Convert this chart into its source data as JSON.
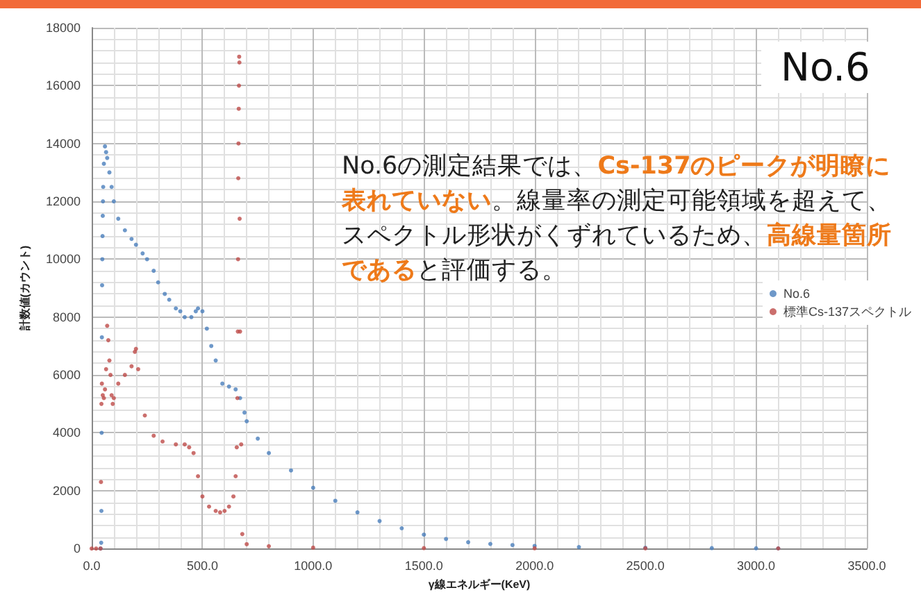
{
  "chart_data": {
    "type": "scatter",
    "xlabel": "γ線エネルギー(KeV)",
    "ylabel": "計数値(カウント)",
    "xlim": [
      0,
      3500
    ],
    "xticks": [
      {
        "value": 0,
        "label": "0.0"
      },
      {
        "value": 500,
        "label": "500.0"
      },
      {
        "value": 1000,
        "label": "1000.0"
      },
      {
        "value": 1500,
        "label": "1500.0"
      },
      {
        "value": 2000,
        "label": "2000.0"
      },
      {
        "value": 2500,
        "label": "2500.0"
      },
      {
        "value": 3000,
        "label": "3000.0"
      },
      {
        "value": 3500,
        "label": "3500.0"
      }
    ],
    "ylim": [
      0,
      18000
    ],
    "yticks": [
      0,
      2000,
      4000,
      6000,
      8000,
      10000,
      12000,
      14000,
      16000,
      18000
    ],
    "grid": true,
    "legend": "right",
    "marker": "circle",
    "annotations": [
      "No.6",
      "No.6の測定結果では、",
      "Cs-137のピークが明瞭に表れていない",
      "。線量率の測定可能領域を超えて、スペクトル形状がくずれているため、",
      "高線量箇所である",
      "と評価する。"
    ],
    "series": [
      {
        "name": "No.6",
        "color": "#4a7ebb",
        "x": [
          40,
          43,
          44,
          45,
          46,
          47,
          48,
          49,
          50,
          51,
          52,
          55,
          60,
          65,
          70,
          80,
          90,
          100,
          120,
          150,
          180,
          200,
          230,
          250,
          280,
          300,
          330,
          350,
          380,
          400,
          420,
          450,
          470,
          480,
          500,
          520,
          540,
          560,
          590,
          620,
          650,
          670,
          690,
          700,
          750,
          800,
          900,
          1000,
          1100,
          1200,
          1300,
          1400,
          1500,
          1600,
          1700,
          1800,
          1900,
          2000,
          2200,
          2500,
          2800,
          3000,
          3100
        ],
        "values": [
          0,
          200,
          1300,
          4000,
          7300,
          9100,
          10000,
          10800,
          11500,
          12000,
          12500,
          13300,
          13900,
          13700,
          13500,
          13000,
          12500,
          12000,
          11400,
          11000,
          10700,
          10500,
          10200,
          10000,
          9600,
          9200,
          8800,
          8600,
          8300,
          8200,
          8000,
          8000,
          8200,
          8300,
          8200,
          7600,
          7000,
          6500,
          5700,
          5600,
          5500,
          5200,
          4700,
          4400,
          3800,
          3300,
          2700,
          2100,
          1650,
          1250,
          950,
          700,
          480,
          330,
          220,
          160,
          120,
          90,
          50,
          25,
          15,
          10,
          5
        ]
      },
      {
        "name": "標準Cs-137スペクトル",
        "color": "#be4b48",
        "x": [
          0,
          20,
          40,
          42,
          44,
          46,
          50,
          55,
          60,
          65,
          70,
          75,
          80,
          85,
          90,
          95,
          100,
          120,
          150,
          180,
          195,
          200,
          210,
          240,
          280,
          320,
          380,
          420,
          440,
          460,
          480,
          500,
          530,
          560,
          580,
          600,
          620,
          640,
          650,
          655,
          658,
          660,
          661,
          662,
          663,
          664,
          665,
          666,
          667,
          668,
          670,
          675,
          680,
          700,
          800,
          1000,
          1500,
          2000,
          2500,
          3100
        ],
        "values": [
          0,
          0,
          0,
          2300,
          5000,
          5700,
          5300,
          5200,
          5500,
          6200,
          7700,
          7200,
          6500,
          6000,
          5300,
          5000,
          5200,
          5700,
          6000,
          6300,
          6800,
          6900,
          6200,
          4600,
          3900,
          3700,
          3600,
          3600,
          3500,
          3300,
          2500,
          1800,
          1450,
          1300,
          1250,
          1300,
          1450,
          1800,
          2500,
          3500,
          5200,
          7500,
          10000,
          12800,
          14000,
          15200,
          16000,
          17000,
          16800,
          11400,
          7500,
          3600,
          500,
          150,
          80,
          30,
          15,
          10,
          8,
          5
        ]
      }
    ]
  }
}
